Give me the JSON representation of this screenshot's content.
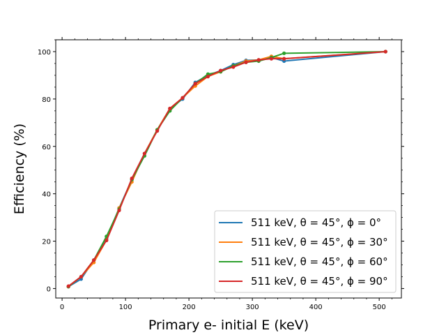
{
  "chart_data": {
    "type": "line",
    "title": "",
    "xlabel": "Primary e- initial E (keV)",
    "ylabel": "Efficiency (%)",
    "xlim": [
      -10,
      535
    ],
    "ylim": [
      -4,
      105
    ],
    "xticks": [
      0,
      100,
      200,
      300,
      400,
      500
    ],
    "yticks": [
      0,
      20,
      40,
      60,
      80,
      100
    ],
    "grid": false,
    "legend_position": "lower-right",
    "series": [
      {
        "name": "511 keV, θ = 45°, ϕ = 0°",
        "color": "#1f77b4",
        "x": [
          10,
          30,
          50,
          70,
          90,
          110,
          130,
          150,
          170,
          190,
          210,
          230,
          250,
          270,
          290,
          310,
          330,
          350,
          510
        ],
        "y": [
          0.8,
          4,
          12,
          21,
          34,
          46,
          57,
          67,
          76,
          80,
          87,
          90,
          92,
          94.5,
          96.3,
          96.5,
          97.5,
          96,
          100
        ]
      },
      {
        "name": "511 keV, θ = 45°, ϕ = 30°",
        "color": "#ff7f0e",
        "x": [
          10,
          30,
          50,
          70,
          90,
          110,
          130,
          150,
          170,
          190,
          210,
          230,
          250,
          270,
          290,
          310,
          330,
          350,
          510
        ],
        "y": [
          0.8,
          5,
          11,
          20.5,
          34,
          45,
          57,
          67,
          76,
          80.5,
          85.5,
          89.5,
          91.5,
          94,
          96,
          96.5,
          98,
          97,
          100
        ]
      },
      {
        "name": "511 keV, θ = 45°, ϕ = 60°",
        "color": "#2ca02c",
        "x": [
          10,
          30,
          50,
          70,
          90,
          110,
          130,
          150,
          170,
          190,
          210,
          230,
          250,
          270,
          290,
          310,
          330,
          350,
          510
        ],
        "y": [
          0.8,
          5,
          12,
          22,
          33.5,
          46,
          56,
          67,
          75,
          80.5,
          86.5,
          90.5,
          91.5,
          94,
          95.5,
          96,
          97.5,
          99.3,
          100
        ]
      },
      {
        "name": "511 keV, θ = 45°, ϕ = 90°",
        "color": "#d62728",
        "x": [
          10,
          30,
          50,
          70,
          90,
          110,
          130,
          150,
          170,
          190,
          210,
          230,
          250,
          270,
          290,
          310,
          330,
          350,
          510
        ],
        "y": [
          1,
          5,
          12,
          20.3,
          33,
          46.5,
          57,
          66.5,
          76,
          80.5,
          86.5,
          89.5,
          92,
          93.5,
          95.5,
          96.5,
          97,
          97,
          100
        ]
      }
    ]
  }
}
